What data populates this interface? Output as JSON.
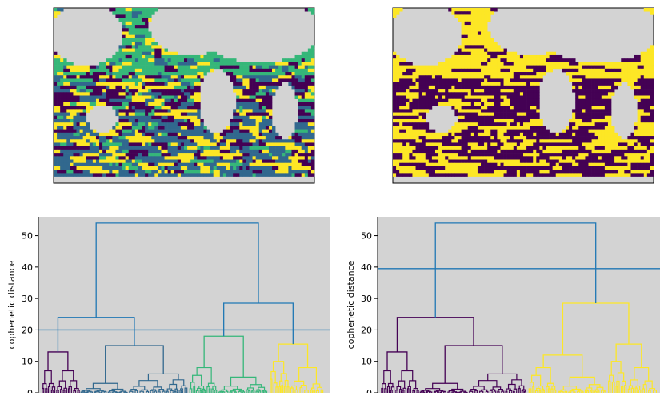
{
  "colors": {
    "background": "#d3d3d3",
    "land": "#d3d3d3",
    "dark_purple": "#440154",
    "teal_blue": "#31688e",
    "green": "#35b779",
    "yellow": "#fde725",
    "threshold_line": "#1f77b4"
  },
  "chart_data": [
    {
      "type": "heatmap",
      "title": "",
      "description": "global ocean map clustered into 4 classes (k=4)",
      "classes": [
        "dark_purple",
        "teal_blue",
        "green",
        "yellow"
      ]
    },
    {
      "type": "heatmap",
      "title": "",
      "description": "global ocean map clustered into 2 classes (k=2)",
      "classes": [
        "dark_purple",
        "yellow"
      ]
    },
    {
      "type": "dendrogram",
      "ylabel": "cophenetic distance",
      "yticks": [
        0,
        10,
        20,
        30,
        40,
        50
      ],
      "ylim": [
        0,
        56
      ],
      "cut_height": 20,
      "merges": [
        {
          "left": [
            0.06,
            13
          ],
          "right": [
            0.85,
            15
          ],
          "height": 24
        },
        {
          "left": [
            1.25,
            15
          ],
          "right": [
            2.6,
            0
          ],
          "height": 28.5
        },
        {
          "left": [
            0.45,
            24
          ],
          "right": [
            1.9,
            28.5
          ],
          "height": 54
        }
      ],
      "cluster_groups": [
        {
          "color": "dark_purple",
          "span": [
            0,
            0.33
          ]
        },
        {
          "color": "teal_blue",
          "span": [
            0.33,
            1.0
          ]
        },
        {
          "color": "green",
          "span": [
            1.0,
            1.6
          ]
        },
        {
          "color": "yellow",
          "span": [
            1.6,
            2.2
          ]
        }
      ]
    },
    {
      "type": "dendrogram",
      "ylabel": "cophenetic distance",
      "yticks": [
        0,
        10,
        20,
        30,
        40,
        50
      ],
      "ylim": [
        0,
        56
      ],
      "cut_height": 39.5,
      "cluster_groups": [
        {
          "color": "dark_purple",
          "span": [
            0,
            1.0
          ]
        },
        {
          "color": "yellow",
          "span": [
            1.0,
            2.2
          ]
        }
      ]
    }
  ]
}
